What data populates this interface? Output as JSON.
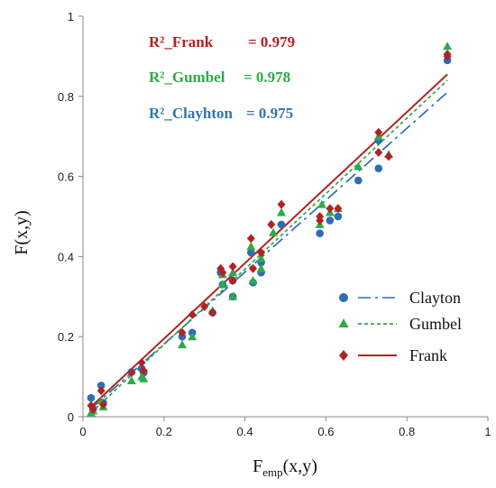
{
  "chart_data": {
    "type": "scatter",
    "title": "",
    "xlabel_main": "F",
    "xlabel_sub": "emp",
    "xlabel_tail": "(x,y)",
    "ylabel": "F(x,y)",
    "xlim": [
      0,
      1
    ],
    "ylim": [
      0,
      1
    ],
    "x_ticks": [
      "0",
      "0.2",
      "0.4",
      "0.6",
      "0.8",
      "1"
    ],
    "y_ticks": [
      "0",
      "0.2",
      "0.4",
      "0.6",
      "0.8",
      "1"
    ],
    "grid": false,
    "legend_position": "bottom-right",
    "annotations": [
      {
        "name": "R²_Frank",
        "value": "= 0.979",
        "color": "#b22222"
      },
      {
        "name": "R²_Gumbel",
        "value": "= 0.978",
        "color": "#2eaa4a"
      },
      {
        "name": "R²_Clayhton",
        "value": "= 0.975",
        "color": "#2e75b6"
      }
    ],
    "series": [
      {
        "name": "Clayton",
        "color": "#2e6db5",
        "marker": "circle",
        "line": "dashdot",
        "fit": [
          [
            0.02,
            0.02
          ],
          [
            0.9,
            0.81
          ]
        ],
        "points": [
          [
            0.02,
            0.047
          ],
          [
            0.025,
            0.02
          ],
          [
            0.045,
            0.078
          ],
          [
            0.05,
            0.035
          ],
          [
            0.12,
            0.112
          ],
          [
            0.145,
            0.12
          ],
          [
            0.15,
            0.11
          ],
          [
            0.245,
            0.2
          ],
          [
            0.27,
            0.21
          ],
          [
            0.32,
            0.26
          ],
          [
            0.345,
            0.33
          ],
          [
            0.34,
            0.36
          ],
          [
            0.37,
            0.3
          ],
          [
            0.37,
            0.34
          ],
          [
            0.415,
            0.41
          ],
          [
            0.42,
            0.335
          ],
          [
            0.44,
            0.36
          ],
          [
            0.44,
            0.385
          ],
          [
            0.49,
            0.48
          ],
          [
            0.585,
            0.458
          ],
          [
            0.61,
            0.49
          ],
          [
            0.63,
            0.5
          ],
          [
            0.68,
            0.59
          ],
          [
            0.73,
            0.62
          ],
          [
            0.73,
            0.69
          ],
          [
            0.9,
            0.89
          ]
        ]
      },
      {
        "name": "Gumbel",
        "color": "#2eaa4a",
        "marker": "triangle",
        "line": "dashed",
        "fit": [
          [
            0.02,
            0.01
          ],
          [
            0.9,
            0.84
          ]
        ],
        "points": [
          [
            0.02,
            0.01
          ],
          [
            0.025,
            0.015
          ],
          [
            0.045,
            0.04
          ],
          [
            0.05,
            0.025
          ],
          [
            0.12,
            0.09
          ],
          [
            0.145,
            0.1
          ],
          [
            0.15,
            0.095
          ],
          [
            0.245,
            0.18
          ],
          [
            0.27,
            0.2
          ],
          [
            0.32,
            0.265
          ],
          [
            0.345,
            0.33
          ],
          [
            0.345,
            0.355
          ],
          [
            0.37,
            0.3
          ],
          [
            0.37,
            0.36
          ],
          [
            0.415,
            0.425
          ],
          [
            0.42,
            0.34
          ],
          [
            0.44,
            0.37
          ],
          [
            0.44,
            0.395
          ],
          [
            0.47,
            0.46
          ],
          [
            0.49,
            0.51
          ],
          [
            0.585,
            0.48
          ],
          [
            0.59,
            0.53
          ],
          [
            0.61,
            0.51
          ],
          [
            0.63,
            0.52
          ],
          [
            0.68,
            0.625
          ],
          [
            0.73,
            0.7
          ],
          [
            0.755,
            0.655
          ],
          [
            0.9,
            0.925
          ]
        ]
      },
      {
        "name": "Frank",
        "color": "#b22222",
        "marker": "diamond",
        "line": "solid",
        "fit": [
          [
            0.02,
            0.025
          ],
          [
            0.9,
            0.855
          ]
        ],
        "points": [
          [
            0.02,
            0.028
          ],
          [
            0.025,
            0.018
          ],
          [
            0.045,
            0.065
          ],
          [
            0.05,
            0.03
          ],
          [
            0.12,
            0.11
          ],
          [
            0.145,
            0.135
          ],
          [
            0.15,
            0.115
          ],
          [
            0.245,
            0.21
          ],
          [
            0.27,
            0.255
          ],
          [
            0.3,
            0.275
          ],
          [
            0.32,
            0.26
          ],
          [
            0.34,
            0.37
          ],
          [
            0.345,
            0.36
          ],
          [
            0.37,
            0.34
          ],
          [
            0.37,
            0.375
          ],
          [
            0.415,
            0.445
          ],
          [
            0.42,
            0.37
          ],
          [
            0.44,
            0.41
          ],
          [
            0.465,
            0.48
          ],
          [
            0.49,
            0.53
          ],
          [
            0.585,
            0.49
          ],
          [
            0.585,
            0.5
          ],
          [
            0.61,
            0.52
          ],
          [
            0.63,
            0.52
          ],
          [
            0.73,
            0.71
          ],
          [
            0.73,
            0.66
          ],
          [
            0.755,
            0.65
          ],
          [
            0.9,
            0.9
          ],
          [
            0.9,
            0.905
          ]
        ]
      }
    ]
  }
}
